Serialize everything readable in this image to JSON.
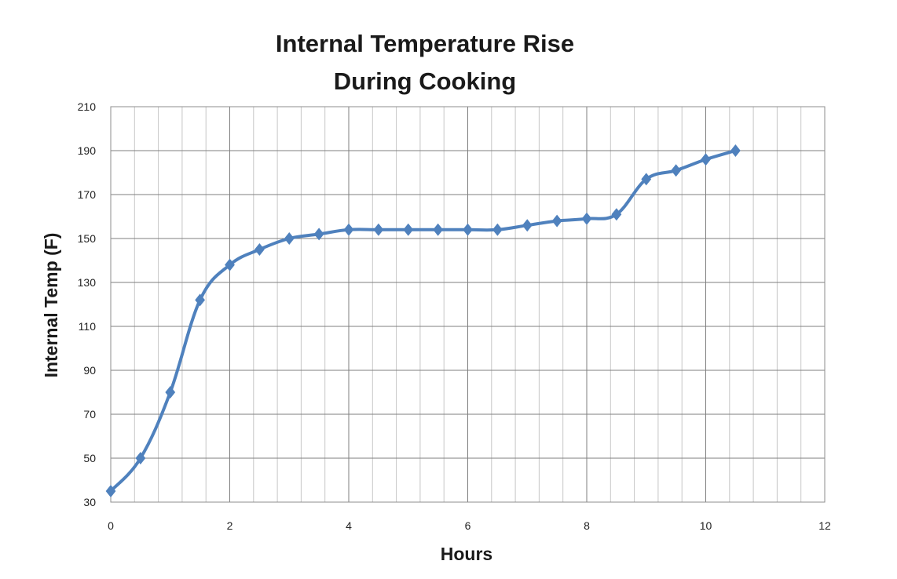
{
  "colors": {
    "series": "#4f81bd",
    "grid_minor": "#c6c6c6",
    "grid_major": "#7f7f7f",
    "plot_border": "#8c8c8c",
    "text": "#1a1a1a"
  },
  "chart_data": {
    "type": "line",
    "title_lines": [
      "Internal Temperature Rise",
      "During Cooking"
    ],
    "xlabel": "Hours",
    "ylabel": "Internal Temp (F)",
    "xlim": [
      0,
      12
    ],
    "ylim": [
      30,
      210
    ],
    "x_ticks": [
      0,
      2,
      4,
      6,
      8,
      10,
      12
    ],
    "x_tick_labels": [
      "0",
      "2",
      "4",
      "6",
      "8",
      "10",
      "12"
    ],
    "y_ticks": [
      30,
      50,
      70,
      90,
      110,
      130,
      150,
      170,
      190,
      210
    ],
    "y_tick_labels": [
      "30",
      "50",
      "70",
      "90",
      "110",
      "130",
      "150",
      "170",
      "190",
      "210"
    ],
    "x_minor_step": 0.4,
    "grid": true,
    "marker": "diamond",
    "smooth": true,
    "series": [
      {
        "name": "Internal Temp",
        "x": [
          0,
          0.5,
          1,
          1.5,
          2,
          2.5,
          3,
          3.5,
          4,
          4.5,
          5,
          5.5,
          6,
          6.5,
          7,
          7.5,
          8,
          8.5,
          9,
          9.5,
          10,
          10.5
        ],
        "y": [
          35,
          50,
          80,
          122,
          138,
          145,
          150,
          152,
          154,
          154,
          154,
          154,
          154,
          154,
          156,
          158,
          159,
          161,
          177,
          181,
          186,
          190
        ]
      }
    ]
  }
}
